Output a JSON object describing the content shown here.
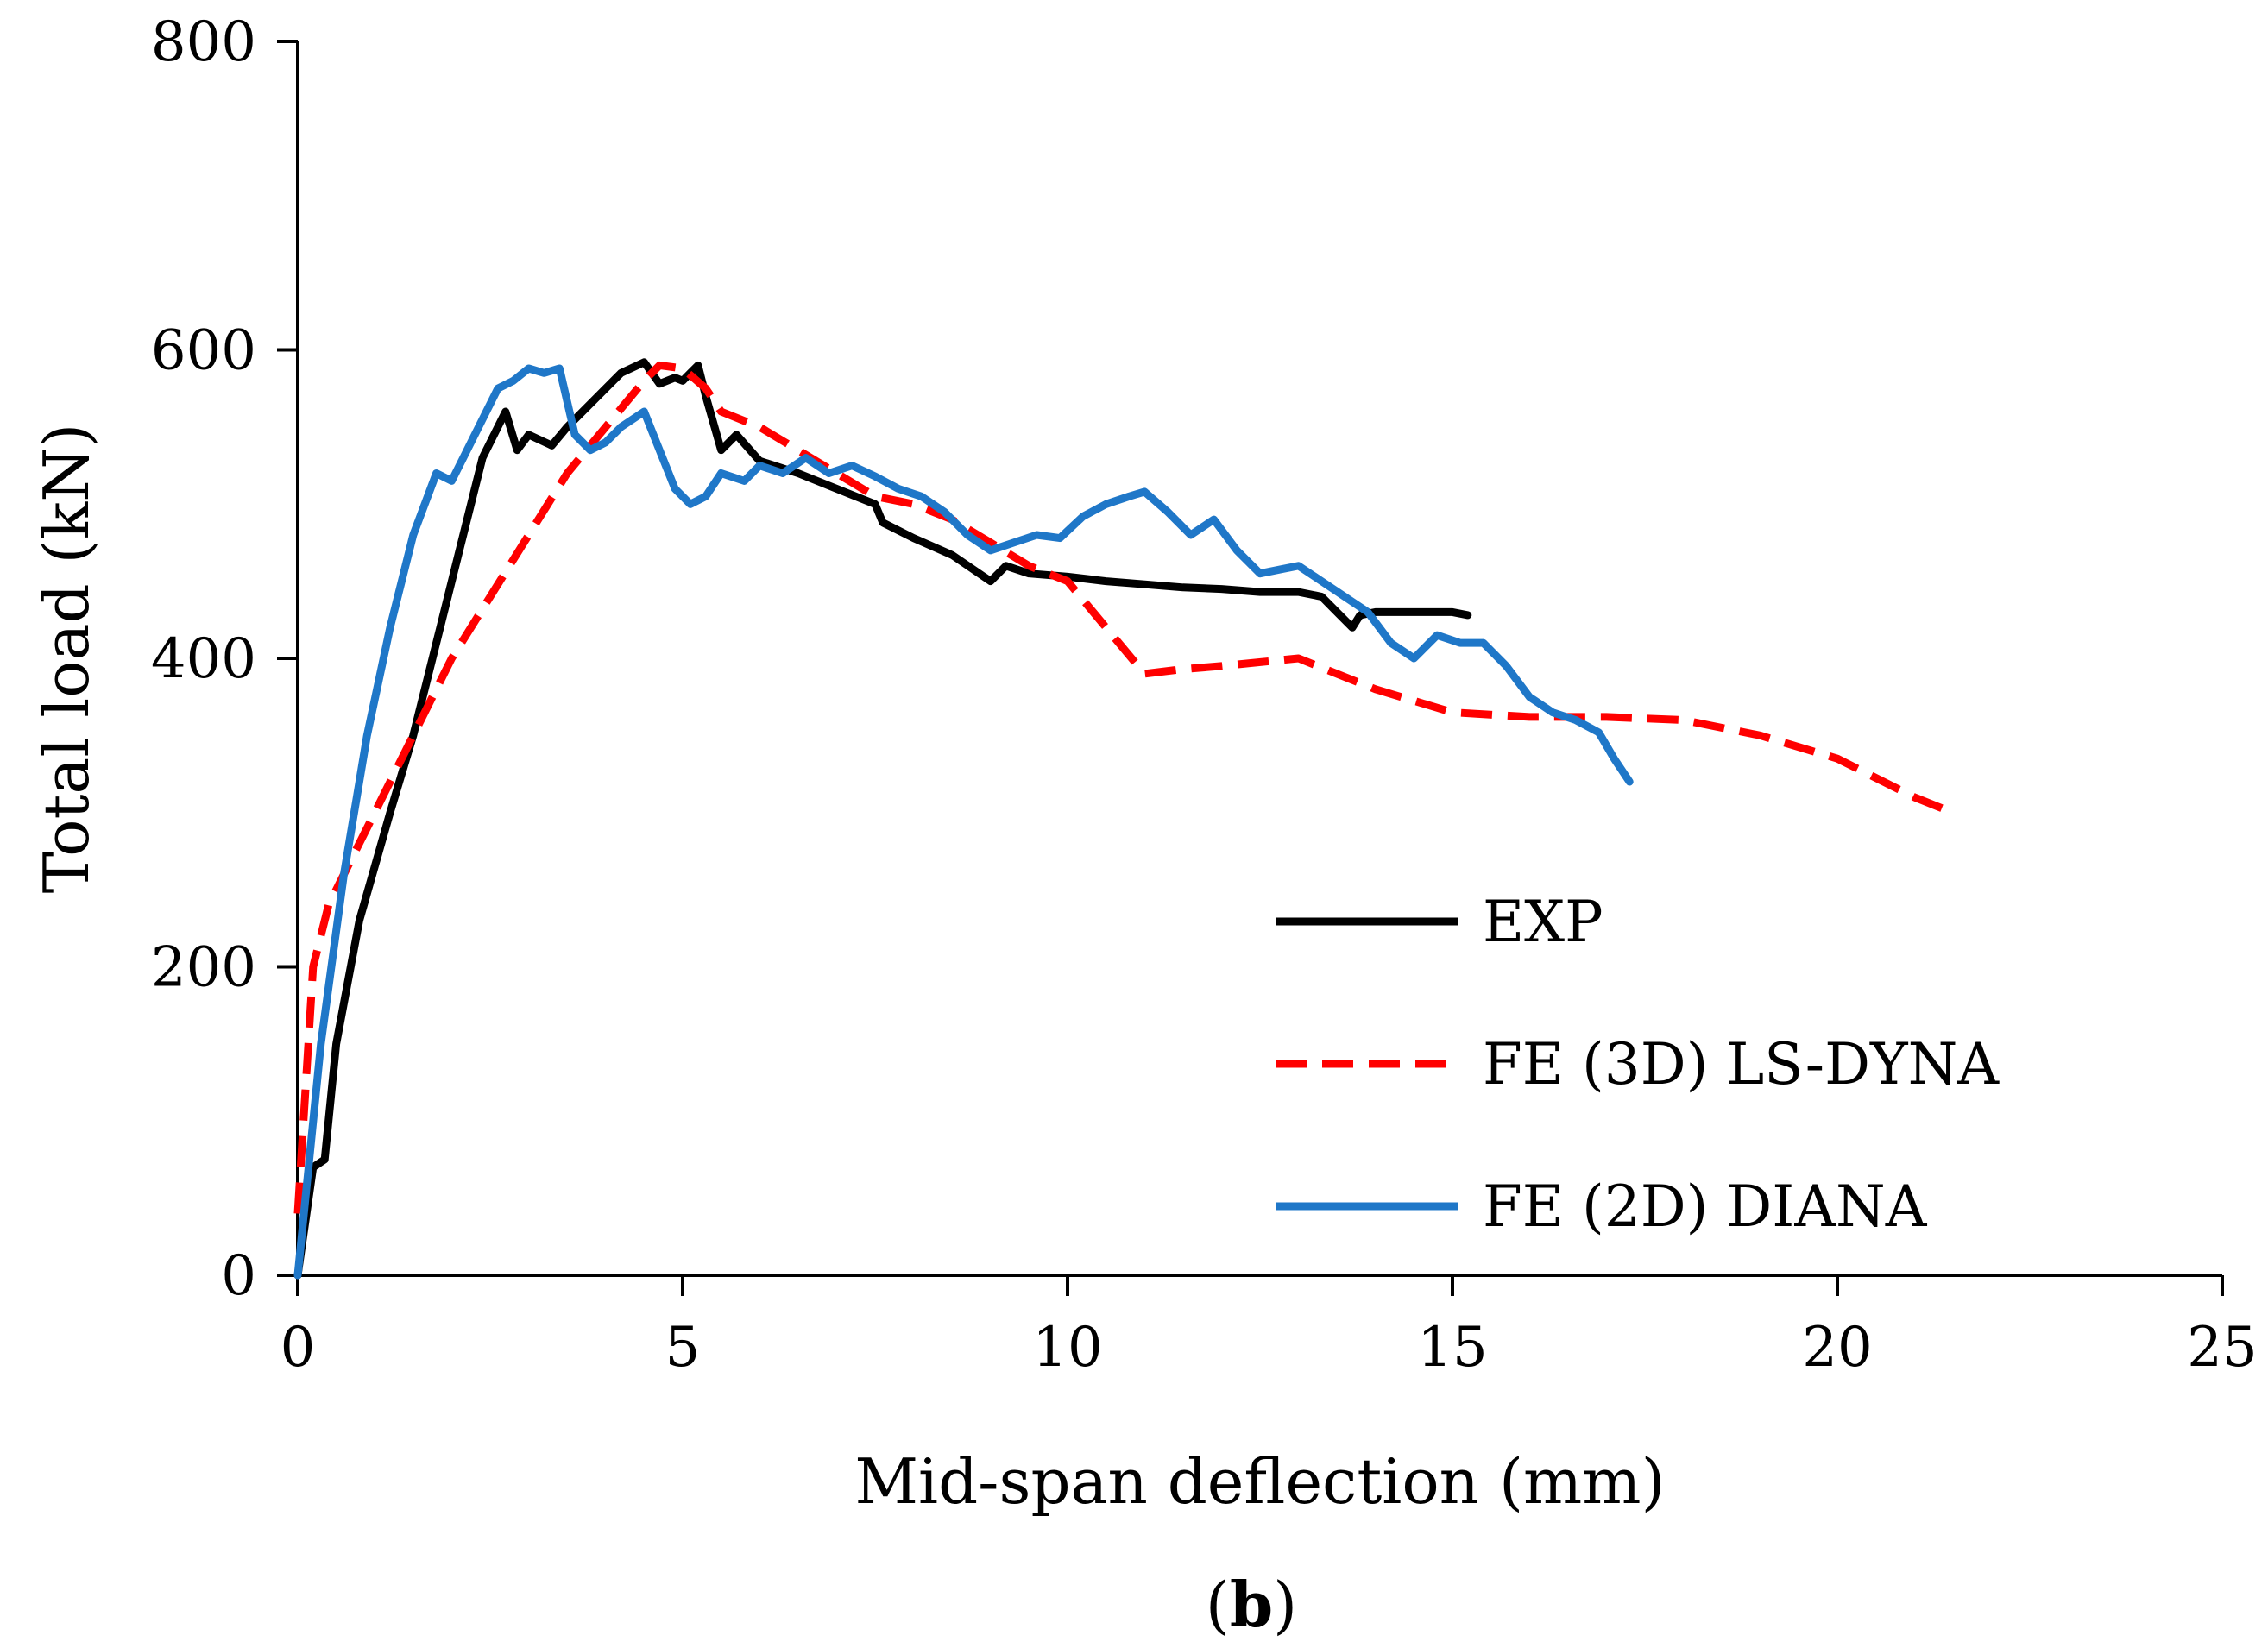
{
  "chart_data": {
    "type": "line",
    "title": "",
    "xlabel": "Mid-span deflection (mm)",
    "ylabel": "Total load (kN)",
    "panel_label": "b",
    "xlim": [
      0,
      25
    ],
    "ylim": [
      0,
      800
    ],
    "xticks": [
      0,
      5,
      10,
      15,
      20,
      25
    ],
    "yticks": [
      0,
      200,
      400,
      600,
      800
    ],
    "grid": false,
    "legend_position": "lower-right",
    "series": [
      {
        "name": "EXP",
        "color": "#000000",
        "style": "solid",
        "x": [
          0,
          0.2,
          0.35,
          0.5,
          0.8,
          1.2,
          1.5,
          1.8,
          2.1,
          2.4,
          2.7,
          2.85,
          3.0,
          3.3,
          3.5,
          3.8,
          4.2,
          4.5,
          4.7,
          4.9,
          5.0,
          5.1,
          5.2,
          5.3,
          5.5,
          5.7,
          6.0,
          6.5,
          7.0,
          7.5,
          7.6,
          8.0,
          8.5,
          9.0,
          9.2,
          9.5,
          10.0,
          10.5,
          11.0,
          11.5,
          12.0,
          12.5,
          13.0,
          13.3,
          13.5,
          13.7,
          13.8,
          14.0,
          14.5,
          15.0,
          15.2
        ],
        "y": [
          0,
          70,
          75,
          150,
          230,
          300,
          350,
          410,
          470,
          530,
          560,
          535,
          545,
          538,
          550,
          565,
          585,
          592,
          578,
          582,
          580,
          585,
          590,
          570,
          535,
          545,
          528,
          520,
          510,
          500,
          488,
          478,
          467,
          450,
          460,
          455,
          453,
          450,
          448,
          446,
          445,
          443,
          443,
          440,
          430,
          420,
          428,
          430,
          430,
          430,
          428
        ]
      },
      {
        "name": "FE (3D) LS-DYNA",
        "color": "#ff0000",
        "style": "dashed",
        "x": [
          0,
          0.1,
          0.2,
          0.4,
          0.7,
          1.0,
          1.5,
          2.0,
          2.5,
          3.0,
          3.5,
          4.0,
          4.5,
          4.7,
          5.0,
          5.3,
          5.5,
          6.0,
          6.5,
          7.0,
          7.5,
          8.0,
          8.5,
          9.0,
          9.5,
          10.0,
          10.5,
          11.0,
          11.5,
          12.0,
          13.0,
          14.0,
          15.0,
          16.0,
          17.0,
          18.0,
          19.0,
          20.0,
          21.0,
          21.5
        ],
        "y": [
          40,
          120,
          200,
          240,
          270,
          300,
          350,
          400,
          440,
          480,
          520,
          550,
          580,
          590,
          588,
          575,
          560,
          550,
          535,
          520,
          505,
          500,
          490,
          475,
          460,
          450,
          420,
          390,
          393,
          395,
          400,
          380,
          365,
          362,
          362,
          360,
          350,
          335,
          310,
          300
        ]
      },
      {
        "name": "FE (2D) DIANA",
        "color": "#1f77c8",
        "style": "solid",
        "x": [
          0,
          0.3,
          0.6,
          0.9,
          1.2,
          1.5,
          1.8,
          2.0,
          2.2,
          2.4,
          2.6,
          2.8,
          3.0,
          3.2,
          3.4,
          3.6,
          3.8,
          4.0,
          4.2,
          4.5,
          4.7,
          4.9,
          5.1,
          5.3,
          5.5,
          5.8,
          6.0,
          6.3,
          6.6,
          6.9,
          7.2,
          7.5,
          7.8,
          8.1,
          8.4,
          8.7,
          9.0,
          9.3,
          9.6,
          9.9,
          10.2,
          10.5,
          10.8,
          11.0,
          11.3,
          11.6,
          11.9,
          12.2,
          12.5,
          12.8,
          13.0,
          13.3,
          13.6,
          13.9,
          14.2,
          14.5,
          14.8,
          15.1,
          15.4,
          15.7,
          16.0,
          16.3,
          16.6,
          16.9,
          17.1,
          17.3
        ],
        "y": [
          0,
          150,
          260,
          350,
          420,
          480,
          520,
          515,
          535,
          555,
          575,
          580,
          588,
          585,
          588,
          545,
          535,
          540,
          550,
          560,
          535,
          510,
          500,
          505,
          520,
          515,
          525,
          520,
          530,
          520,
          525,
          518,
          510,
          505,
          495,
          480,
          470,
          475,
          480,
          478,
          492,
          500,
          505,
          508,
          495,
          480,
          490,
          470,
          455,
          458,
          460,
          450,
          440,
          430,
          410,
          400,
          415,
          410,
          410,
          395,
          375,
          365,
          360,
          352,
          335,
          320
        ]
      }
    ]
  }
}
